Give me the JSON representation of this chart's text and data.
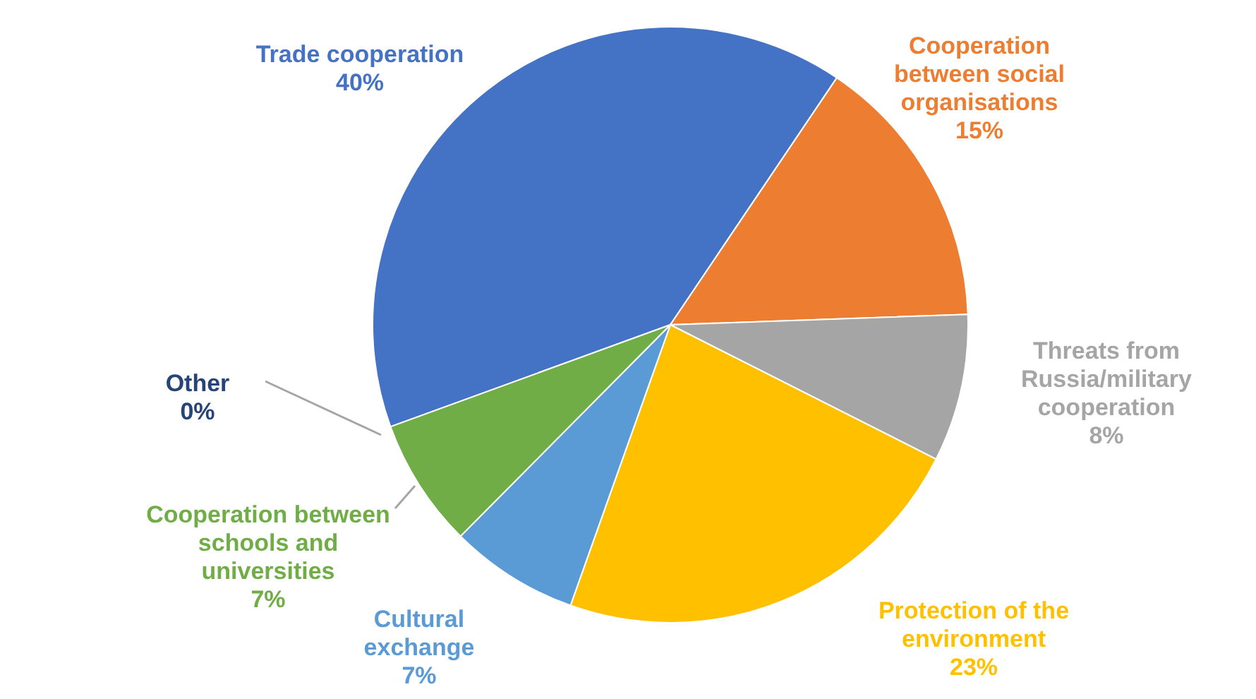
{
  "chart_data": {
    "type": "pie",
    "categories": [
      "Trade cooperation",
      "Cooperation between social organisations",
      "Threats from Russia/military cooperation",
      "Protection of the environment",
      "Cultural exchange",
      "Cooperation between schools and universities",
      "Other"
    ],
    "values": [
      40,
      15,
      8,
      23,
      7,
      7,
      0
    ],
    "value_labels": [
      "40%",
      "15%",
      "8%",
      "23%",
      "7%",
      "7%",
      "0%"
    ],
    "colors": [
      "#4472c4",
      "#ed7d31",
      "#a5a5a5",
      "#ffc000",
      "#5b9bd5",
      "#70ad47",
      "#264478"
    ],
    "legend": false
  }
}
